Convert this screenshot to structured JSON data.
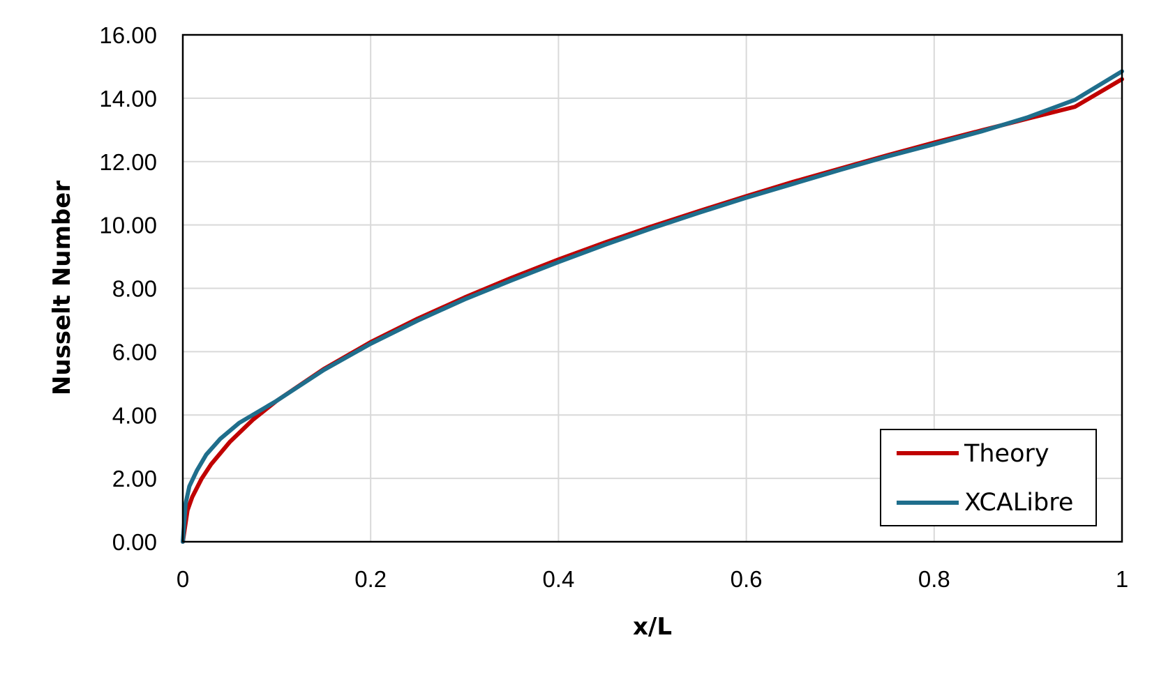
{
  "chart_data": {
    "type": "line",
    "title": "",
    "xlabel": "x/L",
    "ylabel": "Nusselt Number",
    "xlim": [
      0,
      1
    ],
    "ylim": [
      0,
      16
    ],
    "x_ticks": [
      0,
      0.2,
      0.4,
      0.6,
      0.8,
      1
    ],
    "x_tick_labels": [
      "0",
      "0.2",
      "0.4",
      "0.6",
      "0.8",
      "1"
    ],
    "y_ticks": [
      0,
      2,
      4,
      6,
      8,
      10,
      12,
      14,
      16
    ],
    "y_tick_labels": [
      "0.00",
      "2.00",
      "4.00",
      "6.00",
      "8.00",
      "10.00",
      "12.00",
      "14.00",
      "16.00"
    ],
    "grid": true,
    "legend_position": "bottom-right",
    "series": [
      {
        "name": "Theory",
        "color": "#c00000",
        "x": [
          0,
          0.005,
          0.01,
          0.02,
          0.03,
          0.05,
          0.075,
          0.1,
          0.15,
          0.2,
          0.25,
          0.3,
          0.35,
          0.4,
          0.45,
          0.5,
          0.55,
          0.6,
          0.65,
          0.7,
          0.75,
          0.8,
          0.85,
          0.9,
          0.95,
          1.0
        ],
        "y": [
          0,
          0.99,
          1.41,
          1.99,
          2.44,
          3.15,
          3.86,
          4.45,
          5.45,
          6.3,
          7.04,
          7.71,
          8.33,
          8.91,
          9.45,
          9.96,
          10.44,
          10.91,
          11.36,
          11.78,
          12.2,
          12.6,
          12.98,
          13.36,
          13.73,
          14.6
        ]
      },
      {
        "name": "XCALibre",
        "color": "#1f6e8c",
        "x": [
          0,
          0.003,
          0.007,
          0.015,
          0.025,
          0.04,
          0.06,
          0.1,
          0.15,
          0.2,
          0.25,
          0.3,
          0.35,
          0.4,
          0.45,
          0.5,
          0.55,
          0.6,
          0.65,
          0.7,
          0.75,
          0.8,
          0.85,
          0.9,
          0.95,
          1.0
        ],
        "y": [
          0,
          1.2,
          1.75,
          2.25,
          2.75,
          3.25,
          3.75,
          4.45,
          5.42,
          6.25,
          6.98,
          7.65,
          8.25,
          8.83,
          9.38,
          9.9,
          10.39,
          10.86,
          11.3,
          11.74,
          12.16,
          12.55,
          12.95,
          13.4,
          13.95,
          14.85
        ]
      }
    ]
  }
}
